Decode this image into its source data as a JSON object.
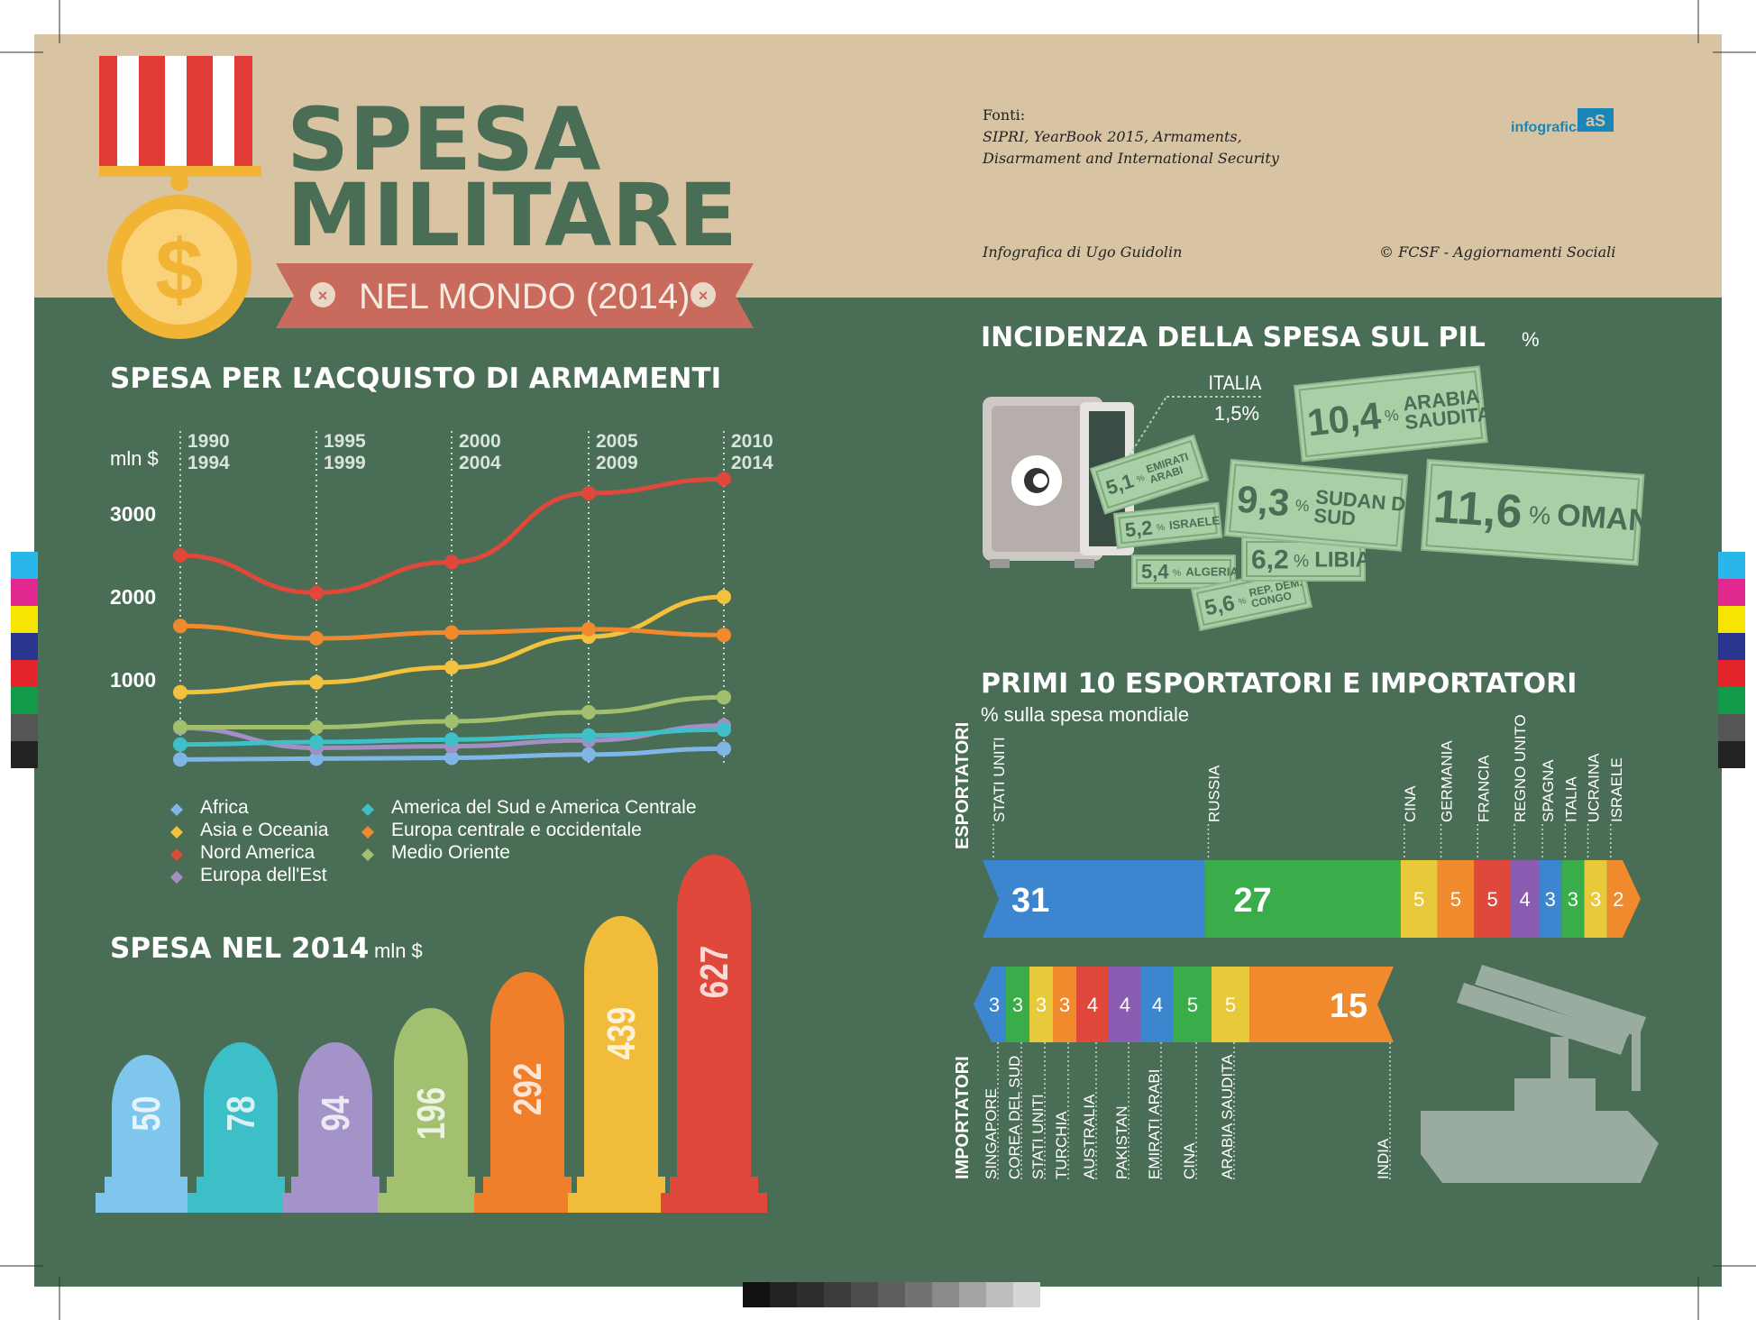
{
  "header": {
    "title_line1": "SPESA",
    "title_line2": "MILITARE",
    "subtitle": "NEL MONDO (2014)",
    "medal_symbol": "$",
    "sources_label": "Fonti:",
    "sources_line1": "SIPRI, YearBook 2015, Armaments,",
    "sources_line2": "Disarmament and International Security",
    "author": "Infografica di Ugo Guidolin",
    "copyright": "© FCSF - Aggiornamenti Sociali",
    "brand": "infografica",
    "brand_mark": "aS"
  },
  "colors": {
    "green_bg": "#4a6d55",
    "tan": "#d8c4a2",
    "title_green": "#4a6d55",
    "ribbon": "#c86a5c",
    "money": "#a8cfa6",
    "africa": "#7fb6e6",
    "asia": "#f2c13e",
    "nord_america": "#e0483b",
    "europa_est": "#a38fc6",
    "america_sud": "#3fbfc8",
    "europa_co": "#f08a2c",
    "medio_oriente": "#a2bf6e"
  },
  "chart_data": [
    {
      "type": "line",
      "title": "SPESA PER L'ACQUISTO DI ARMAMENTI",
      "ylabel": "mln $",
      "categories": [
        "1990\n1994",
        "1995\n1999",
        "2000\n2004",
        "2005\n2009",
        "2010\n2014"
      ],
      "ylim": [
        0,
        3500
      ],
      "yticks": [
        "1000",
        "2000",
        "3000"
      ],
      "grid": "vertical dotted",
      "legend_position": "bottom-left",
      "series": [
        {
          "name": "Africa",
          "color": "#7fb6e6",
          "values": [
            40,
            50,
            60,
            100,
            170
          ]
        },
        {
          "name": "Asia e Oceania",
          "color": "#f2c13e",
          "values": [
            850,
            970,
            1150,
            1520,
            2000
          ]
        },
        {
          "name": "Nord America",
          "color": "#e0483b",
          "values": [
            2500,
            2050,
            2420,
            3250,
            3420
          ]
        },
        {
          "name": "Europa dell'Est",
          "color": "#a38fc6",
          "values": [
            420,
            180,
            200,
            270,
            450
          ]
        },
        {
          "name": "America del Sud e America Centrale",
          "color": "#3fbfc8",
          "values": [
            220,
            250,
            280,
            330,
            400
          ]
        },
        {
          "name": "Europa centrale e occidentale",
          "color": "#f08a2c",
          "values": [
            1650,
            1500,
            1570,
            1610,
            1540
          ]
        },
        {
          "name": "Medio Oriente",
          "color": "#a2bf6e",
          "values": [
            430,
            430,
            500,
            610,
            790
          ]
        }
      ]
    },
    {
      "type": "bar",
      "title": "SPESA NEL 2014",
      "unit": "mln $",
      "values": [
        50,
        78,
        94,
        196,
        292,
        439,
        627
      ],
      "labels": [
        "50",
        "78",
        "94",
        "196",
        "292",
        "439",
        "627"
      ],
      "colors": [
        "#7fc6ec",
        "#3dbfc8",
        "#a493c8",
        "#a3c070",
        "#f07f2c",
        "#f2bc3b",
        "#e0483b"
      ]
    },
    {
      "type": "table",
      "title": "INCIDENZA DELLA SPESA SUL PIL",
      "unit": "%",
      "rows": [
        {
          "country": "ITALIA",
          "value": "1,5%"
        },
        {
          "country": "EMIRATI ARABI",
          "value": "5,1"
        },
        {
          "country": "ISRAELE",
          "value": "5,2"
        },
        {
          "country": "ALGERIA",
          "value": "5,4"
        },
        {
          "country": "REP. DEM. CONGO",
          "value": "5,6"
        },
        {
          "country": "LIBIA",
          "value": "6,2"
        },
        {
          "country": "SUDAN DEL SUD",
          "value": "9,3"
        },
        {
          "country": "ARABIA SAUDITA",
          "value": "10,4"
        },
        {
          "country": "OMAN",
          "value": "11,6"
        }
      ]
    },
    {
      "type": "bar",
      "title": "PRIMI 10 ESPORTATORI E IMPORTATORI",
      "subtitle": "% sulla spesa mondiale",
      "groups": [
        {
          "name": "ESPORTATORI",
          "categories": [
            "STATI UNITI",
            "RUSSIA",
            "CINA",
            "GERMANIA",
            "FRANCIA",
            "REGNO UNITO",
            "SPAGNA",
            "ITALIA",
            "UCRAINA",
            "ISRAELE"
          ],
          "values": [
            31,
            27,
            5,
            5,
            5,
            4,
            3,
            3,
            3,
            2
          ],
          "colors": [
            "#3c86d0",
            "#3aac4a",
            "#e8c93a",
            "#f08a2c",
            "#e0483b",
            "#8a5cb2",
            "#3c86d0",
            "#3aac4a",
            "#e8c93a",
            "#f08a2c"
          ]
        },
        {
          "name": "IMPORTATORI",
          "categories": [
            "SINGAPORE",
            "COREA DEL SUD",
            "STATI UNITI",
            "TURCHIA",
            "AUSTRALIA",
            "PAKISTAN",
            "EMIRATI ARABI",
            "CINA",
            "ARABIA SAUDITA",
            "INDIA"
          ],
          "values": [
            3,
            3,
            3,
            3,
            4,
            4,
            4,
            5,
            5,
            15
          ],
          "colors": [
            "#3c86d0",
            "#3aac4a",
            "#e8c93a",
            "#f08a2c",
            "#e0483b",
            "#8a5cb2",
            "#3c86d0",
            "#3aac4a",
            "#e8c93a",
            "#f08a2c"
          ]
        }
      ]
    }
  ]
}
